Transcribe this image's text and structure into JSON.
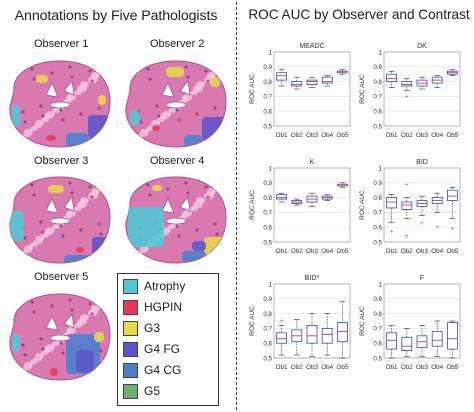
{
  "left_panel": {
    "title": "Annotations by Five Pathologists",
    "observers": [
      "Observer 1",
      "Observer 2",
      "Observer 3",
      "Observer 4",
      "Observer 5"
    ],
    "legend": [
      {
        "label": "Atrophy",
        "color": "#4fc9d6"
      },
      {
        "label": "HGPIN",
        "color": "#e23b57"
      },
      {
        "label": "G3",
        "color": "#e6d94a"
      },
      {
        "label": "G4 FG",
        "color": "#5b55c9"
      },
      {
        "label": "G4 CG",
        "color": "#4a7fd0"
      },
      {
        "label": "G5",
        "color": "#6fae6f"
      }
    ],
    "tissue_color": "#d879b0"
  },
  "right_panel": {
    "title": "ROC AUC by Observer and Contrast"
  },
  "chart_data": [
    {
      "type": "box",
      "title": "MEADC",
      "ylabel": "ROC AUC",
      "ylim": [
        0.5,
        1.0
      ],
      "yticks": [
        0.5,
        0.6,
        0.7,
        0.8,
        0.9,
        1
      ],
      "grid": true,
      "categories": [
        "Ob1",
        "Ob2",
        "Ob3",
        "Ob4",
        "Ob5"
      ],
      "boxes": [
        {
          "q1": 0.81,
          "median": 0.84,
          "q3": 0.86,
          "whisker_low": 0.77,
          "whisker_high": 0.88,
          "outliers": []
        },
        {
          "q1": 0.77,
          "median": 0.78,
          "q3": 0.8,
          "whisker_low": 0.75,
          "whisker_high": 0.83,
          "outliers": []
        },
        {
          "q1": 0.78,
          "median": 0.8,
          "q3": 0.81,
          "whisker_low": 0.76,
          "whisker_high": 0.83,
          "outliers": []
        },
        {
          "q1": 0.79,
          "median": 0.8,
          "q3": 0.83,
          "whisker_low": 0.77,
          "whisker_high": 0.84,
          "outliers": []
        },
        {
          "q1": 0.86,
          "median": 0.87,
          "q3": 0.87,
          "whisker_low": 0.85,
          "whisker_high": 0.88,
          "outliers": []
        }
      ]
    },
    {
      "type": "box",
      "title": "DK",
      "ylabel": "ROC AUC",
      "ylim": [
        0.5,
        1.0
      ],
      "yticks": [
        0.5,
        0.6,
        0.7,
        0.8,
        0.9,
        1
      ],
      "grid": true,
      "categories": [
        "Ob1",
        "Ob2",
        "Ob3",
        "Ob4",
        "Ob5"
      ],
      "boxes": [
        {
          "q1": 0.8,
          "median": 0.82,
          "q3": 0.85,
          "whisker_low": 0.76,
          "whisker_high": 0.87,
          "outliers": []
        },
        {
          "q1": 0.77,
          "median": 0.78,
          "q3": 0.8,
          "whisker_low": 0.74,
          "whisker_high": 0.82,
          "outliers": [
            0.7
          ]
        },
        {
          "q1": 0.77,
          "median": 0.79,
          "q3": 0.81,
          "whisker_low": 0.75,
          "whisker_high": 0.83,
          "outliers": []
        },
        {
          "q1": 0.79,
          "median": 0.81,
          "q3": 0.83,
          "whisker_low": 0.76,
          "whisker_high": 0.84,
          "outliers": []
        },
        {
          "q1": 0.85,
          "median": 0.86,
          "q3": 0.87,
          "whisker_low": 0.84,
          "whisker_high": 0.88,
          "outliers": []
        }
      ]
    },
    {
      "type": "box",
      "title": "K",
      "ylabel": "ROC AUC",
      "ylim": [
        0.5,
        1.0
      ],
      "yticks": [
        0.5,
        0.6,
        0.7,
        0.8,
        0.9,
        1
      ],
      "grid": true,
      "categories": [
        "Ob1",
        "Ob2",
        "Ob3",
        "Ob4",
        "Ob5"
      ],
      "boxes": [
        {
          "q1": 0.79,
          "median": 0.8,
          "q3": 0.82,
          "whisker_low": 0.77,
          "whisker_high": 0.83,
          "outliers": []
        },
        {
          "q1": 0.76,
          "median": 0.77,
          "q3": 0.78,
          "whisker_low": 0.75,
          "whisker_high": 0.79,
          "outliers": []
        },
        {
          "q1": 0.77,
          "median": 0.79,
          "q3": 0.81,
          "whisker_low": 0.74,
          "whisker_high": 0.83,
          "outliers": []
        },
        {
          "q1": 0.79,
          "median": 0.8,
          "q3": 0.81,
          "whisker_low": 0.78,
          "whisker_high": 0.82,
          "outliers": []
        },
        {
          "q1": 0.88,
          "median": 0.88,
          "q3": 0.89,
          "whisker_low": 0.87,
          "whisker_high": 0.9,
          "outliers": []
        }
      ]
    },
    {
      "type": "box",
      "title": "BID",
      "ylabel": "ROC AUC",
      "ylim": [
        0.5,
        1.0
      ],
      "yticks": [
        0.5,
        0.6,
        0.7,
        0.8,
        0.9,
        1
      ],
      "grid": true,
      "categories": [
        "Ob1",
        "Ob2",
        "Ob3",
        "Ob4",
        "Ob5"
      ],
      "boxes": [
        {
          "q1": 0.73,
          "median": 0.77,
          "q3": 0.8,
          "whisker_low": 0.63,
          "whisker_high": 0.82,
          "outliers": [
            0.57
          ]
        },
        {
          "q1": 0.72,
          "median": 0.75,
          "q3": 0.77,
          "whisker_low": 0.66,
          "whisker_high": 0.8,
          "outliers": [
            0.89,
            0.54
          ]
        },
        {
          "q1": 0.74,
          "median": 0.76,
          "q3": 0.78,
          "whisker_low": 0.68,
          "whisker_high": 0.81,
          "outliers": [
            0.63
          ]
        },
        {
          "q1": 0.76,
          "median": 0.78,
          "q3": 0.8,
          "whisker_low": 0.7,
          "whisker_high": 0.83,
          "outliers": [
            0.6
          ]
        },
        {
          "q1": 0.78,
          "median": 0.81,
          "q3": 0.85,
          "whisker_low": 0.66,
          "whisker_high": 0.87,
          "outliers": [
            0.59
          ]
        }
      ]
    },
    {
      "type": "box",
      "title": "BID*",
      "ylabel": "ROC AUC",
      "ylim": [
        0.5,
        1.0
      ],
      "yticks": [
        0.5,
        0.6,
        0.7,
        0.8,
        0.9,
        1
      ],
      "grid": true,
      "categories": [
        "Ob1",
        "Ob2",
        "Ob3",
        "Ob4",
        "Ob5"
      ],
      "boxes": [
        {
          "q1": 0.6,
          "median": 0.63,
          "q3": 0.67,
          "whisker_low": 0.52,
          "whisker_high": 0.72,
          "outliers": [
            0.75
          ]
        },
        {
          "q1": 0.61,
          "median": 0.65,
          "q3": 0.69,
          "whisker_low": 0.52,
          "whisker_high": 0.76,
          "outliers": []
        },
        {
          "q1": 0.6,
          "median": 0.65,
          "q3": 0.72,
          "whisker_low": 0.51,
          "whisker_high": 0.8,
          "outliers": []
        },
        {
          "q1": 0.6,
          "median": 0.66,
          "q3": 0.7,
          "whisker_low": 0.52,
          "whisker_high": 0.8,
          "outliers": []
        },
        {
          "q1": 0.61,
          "median": 0.68,
          "q3": 0.74,
          "whisker_low": 0.5,
          "whisker_high": 0.88,
          "outliers": []
        }
      ]
    },
    {
      "type": "box",
      "title": "F",
      "ylabel": "ROC AUC",
      "ylim": [
        0.5,
        1.0
      ],
      "yticks": [
        0.5,
        0.6,
        0.7,
        0.8,
        0.9,
        1
      ],
      "grid": true,
      "categories": [
        "Ob1",
        "Ob2",
        "Ob3",
        "Ob4",
        "Ob5"
      ],
      "boxes": [
        {
          "q1": 0.56,
          "median": 0.62,
          "q3": 0.67,
          "whisker_low": 0.5,
          "whisker_high": 0.72,
          "outliers": []
        },
        {
          "q1": 0.55,
          "median": 0.58,
          "q3": 0.64,
          "whisker_low": 0.51,
          "whisker_high": 0.7,
          "outliers": []
        },
        {
          "q1": 0.57,
          "median": 0.61,
          "q3": 0.65,
          "whisker_low": 0.51,
          "whisker_high": 0.72,
          "outliers": []
        },
        {
          "q1": 0.58,
          "median": 0.62,
          "q3": 0.68,
          "whisker_low": 0.51,
          "whisker_high": 0.75,
          "outliers": []
        },
        {
          "q1": 0.56,
          "median": 0.63,
          "q3": 0.74,
          "whisker_low": 0.5,
          "whisker_high": 0.75,
          "outliers": []
        }
      ]
    }
  ]
}
